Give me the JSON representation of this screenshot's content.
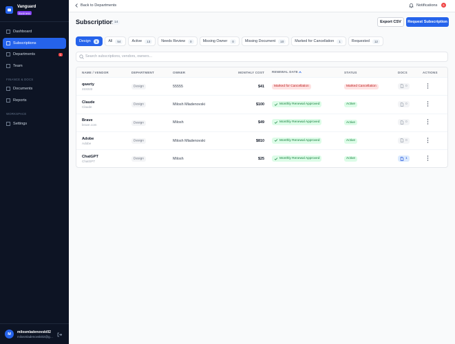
{
  "sidebar": {
    "brand": "Vanguard",
    "plan": "Business",
    "main_nav": [
      "Dashboard",
      "Subscriptions",
      "Departments",
      "Team"
    ],
    "active_nav": 1,
    "departments_badge": "1",
    "finance_heading": "FINANCE & DOCS",
    "finance_nav": [
      "Documents",
      "Reports"
    ],
    "workspace_heading": "WORKSPACE",
    "workspace_nav": [
      "Settings"
    ],
    "user": {
      "initial": "M",
      "name": "milosmladenovski02",
      "email": "milosmladenovski02@gmail.com"
    }
  },
  "topbar": {
    "back": "Back to Departments",
    "notifications": "Notifications",
    "notifications_count": "6"
  },
  "header": {
    "title": "Subscriptions",
    "count": "14",
    "export": "Export CSV",
    "request": "Request Subscription"
  },
  "tabs": [
    {
      "label": "Design",
      "count": "5"
    },
    {
      "label": "All",
      "count": "54"
    },
    {
      "label": "Active",
      "count": "13"
    },
    {
      "label": "Needs Review",
      "count": "0"
    },
    {
      "label": "Missing Owner",
      "count": "0"
    },
    {
      "label": "Missing Document",
      "count": "10"
    },
    {
      "label": "Marked for Cancellation",
      "count": "1"
    },
    {
      "label": "Requested",
      "count": "12"
    }
  ],
  "active_tab": 0,
  "search_placeholder": "Search subscriptions, vendors, owners...",
  "table": {
    "columns": [
      "NAME / VENDOR",
      "DEPARTMENT",
      "OWNER",
      "MONTHLY COST",
      "RENEWAL DATE",
      "STATUS",
      "DOCS",
      "ACTIONS"
    ],
    "sorted_column": 4,
    "rows": [
      {
        "name": "qwerty",
        "vendor": "222222",
        "department": "Design",
        "owner": "55555",
        "cost": "$41",
        "renewal": {
          "label": "Marked for Cancellation",
          "color": "red"
        },
        "status": {
          "label": "Marked Cancellation",
          "color": "red"
        },
        "docs": "0"
      },
      {
        "name": "Claude",
        "vendor": "Claude",
        "department": "Design",
        "owner": "Milosh Mladenovski",
        "cost": "$100",
        "renewal": {
          "label": "Monthly Renewal Approved",
          "color": "green"
        },
        "status": {
          "label": "Active",
          "color": "green"
        },
        "docs": "0"
      },
      {
        "name": "Brave",
        "vendor": "brave.com",
        "department": "Design",
        "owner": "Milosh",
        "cost": "$49",
        "renewal": {
          "label": "Monthly Renewal Approved",
          "color": "green"
        },
        "status": {
          "label": "Active",
          "color": "green"
        },
        "docs": "0"
      },
      {
        "name": "Adobe",
        "vendor": "Adobe",
        "department": "Design",
        "owner": "Milosh Mladenovski",
        "cost": "$810",
        "renewal": {
          "label": "Monthly Renewal Approved",
          "color": "green"
        },
        "status": {
          "label": "Active",
          "color": "green"
        },
        "docs": "0"
      },
      {
        "name": "ChatGPT",
        "vendor": "ChatGPT",
        "department": "Design",
        "owner": "Milosh",
        "cost": "$25",
        "renewal": {
          "label": "Monthly Renewal Approved",
          "color": "green"
        },
        "status": {
          "label": "Active",
          "color": "green"
        },
        "docs": "1"
      }
    ]
  }
}
